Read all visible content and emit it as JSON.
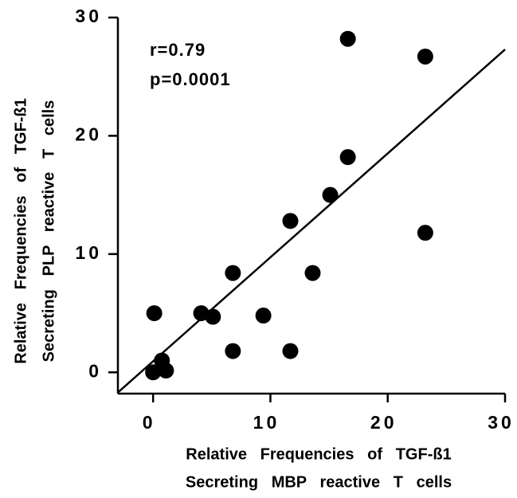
{
  "chart_data": {
    "type": "scatter",
    "x_label": [
      "Relative   Frequencies   of   TGF-ß1",
      "Secreting   MBP   reactive   T   cells"
    ],
    "y_label": [
      "Relative   Frequencies   of   TGF-ß1",
      "Secreting   PLP   reactive   T   cells"
    ],
    "annotations": [
      "r=0.79",
      "p=0.0001"
    ],
    "color": "#000000",
    "series": [
      {
        "x": [
          0,
          0.1,
          0.75,
          1.1,
          4.1,
          5.1,
          6.8,
          6.8,
          9.4,
          11.7,
          11.7,
          13.6,
          15.1,
          16.6,
          16.6,
          23.2,
          23.2
        ],
        "values": [
          0,
          5.0,
          1.0,
          0.15,
          5.0,
          4.7,
          8.4,
          1.8,
          4.8,
          12.8,
          1.8,
          8.4,
          15.0,
          28.2,
          18.2,
          26.7,
          11.8
        ]
      }
    ],
    "fit": {
      "x": [
        -3,
        30
      ],
      "values": [
        -1.7,
        27.3
      ]
    },
    "xlim": [
      -3,
      30
    ],
    "ylim": [
      -1.8,
      30
    ],
    "xticks": [
      0,
      10,
      20,
      30
    ],
    "yticks": [
      0,
      10,
      20,
      30
    ]
  }
}
